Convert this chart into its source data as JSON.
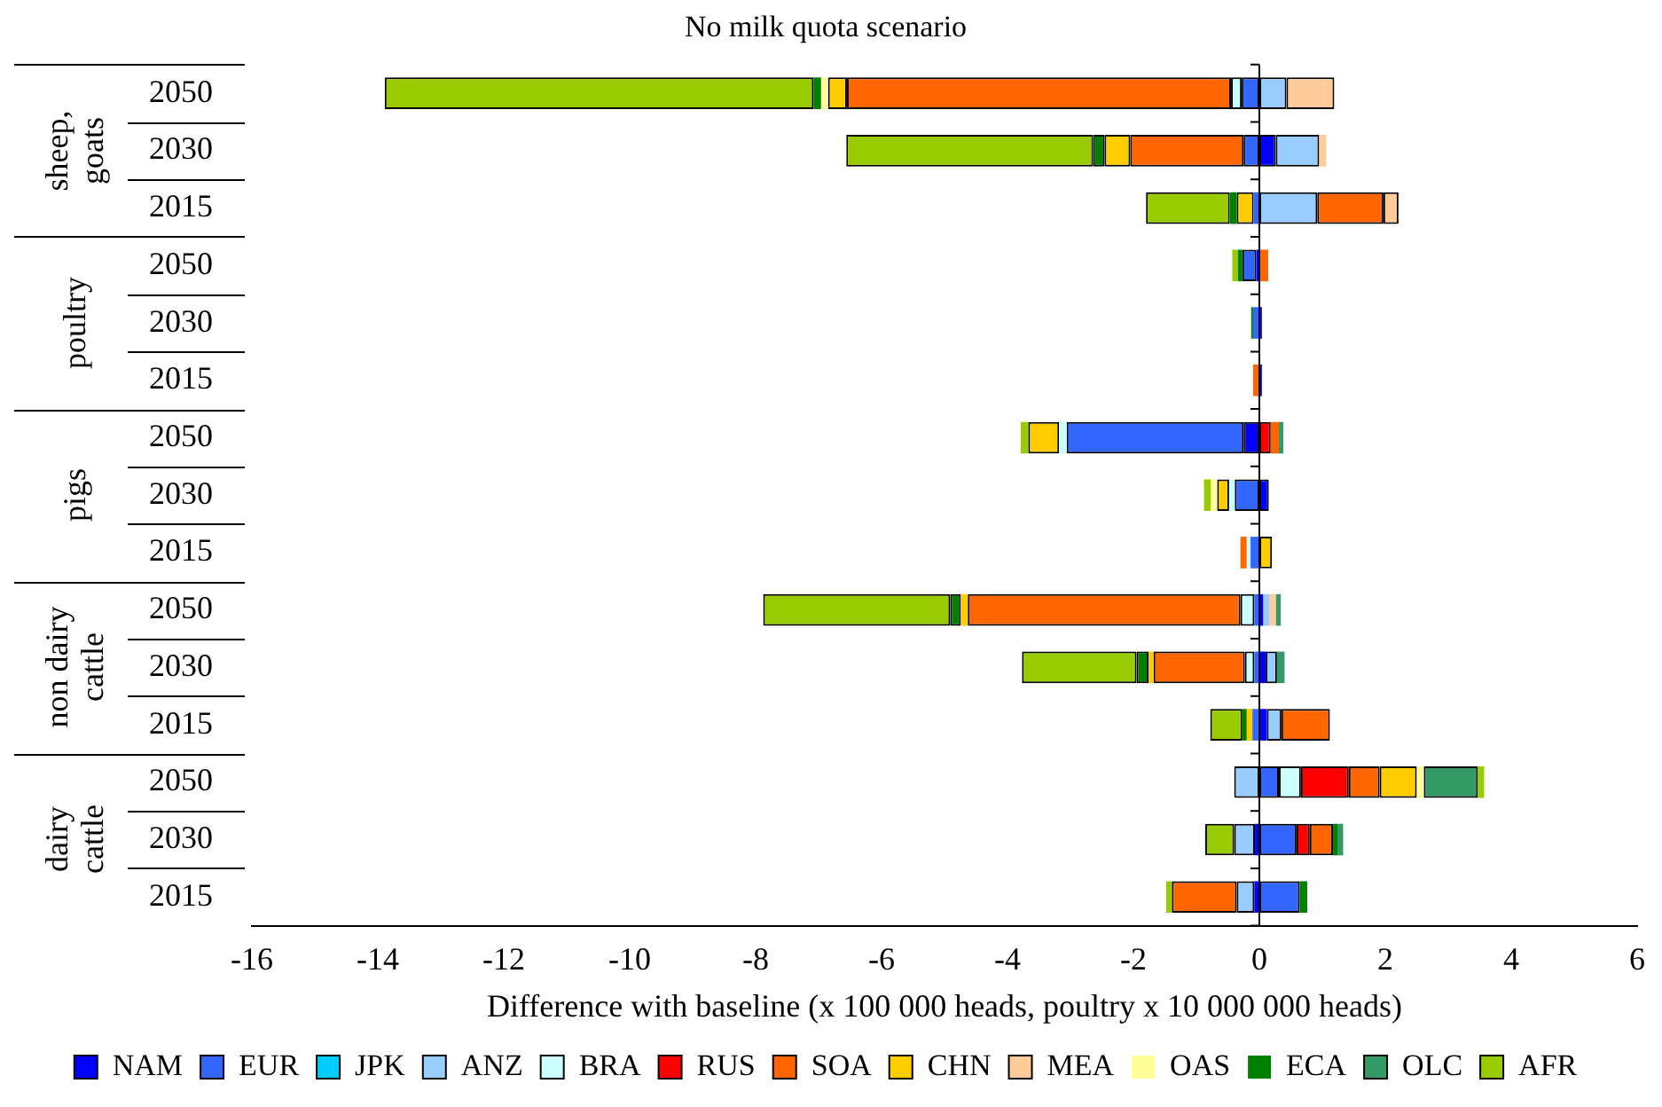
{
  "chart_data": {
    "type": "bar",
    "orientation": "horizontal",
    "stacked": true,
    "title": "No milk quota scenario",
    "xlabel": "Difference with baseline (x 100 000 heads, poultry x 10 000 000 heads)",
    "categories": [
      "2050",
      "2030",
      "2015",
      "2050",
      "2030",
      "2015",
      "2050",
      "2030",
      "2015",
      "2050",
      "2030",
      "2015",
      "2050",
      "2030",
      "2015"
    ],
    "annotations": [
      "sheep, goats",
      "poultry",
      "pigs",
      "non dairy cattle",
      "dairy cattle"
    ],
    "xlim": [
      -16,
      6
    ],
    "xticks": [
      -16,
      -14,
      -12,
      -10,
      -8,
      -6,
      -4,
      -2,
      0,
      2,
      4,
      6
    ],
    "grid": false,
    "legend": "bottom",
    "ref_lines": [
      {
        "axis": "x",
        "value": 0,
        "color": "#000000"
      }
    ],
    "series": [
      {
        "name": "NAM",
        "color": "#0000ff",
        "values": [
          null,
          0.26,
          null,
          -0.05,
          0.04,
          0.04,
          -0.25,
          0.15,
          null,
          0.06,
          0.1,
          0.12,
          null,
          -0.07,
          -0.08
        ]
      },
      {
        "name": "EUR",
        "color": "#3366ff",
        "values": [
          -0.28,
          -0.25,
          -0.09,
          -0.22,
          -0.1,
          null,
          -2.81,
          -0.39,
          -0.14,
          -0.08,
          -0.08,
          -0.11,
          0.31,
          0.59,
          0.64
        ]
      },
      {
        "name": "JPK",
        "color": "#00ccff",
        "values": [
          null,
          null,
          null,
          null,
          null,
          null,
          null,
          null,
          null,
          null,
          null,
          null,
          null,
          null,
          null
        ]
      },
      {
        "name": "ANZ",
        "color": "#99ccff",
        "values": [
          0.43,
          0.69,
          0.92,
          null,
          null,
          null,
          null,
          null,
          null,
          0.1,
          0.18,
          0.23,
          -0.4,
          -0.33,
          -0.28
        ]
      },
      {
        "name": "BRA",
        "color": "#ccffff",
        "values": [
          -0.17,
          null,
          null,
          null,
          null,
          null,
          -0.12,
          -0.09,
          -0.06,
          -0.22,
          -0.15,
          null,
          0.35,
          null,
          null
        ]
      },
      {
        "name": "RUS",
        "color": "#ff0000",
        "values": [
          null,
          null,
          null,
          null,
          null,
          null,
          0.18,
          null,
          null,
          null,
          null,
          null,
          0.76,
          0.21,
          null
        ]
      },
      {
        "name": "SOA",
        "color": "#ff6600",
        "values": [
          -6.1,
          -1.8,
          1.05,
          0.14,
          null,
          -0.1,
          0.13,
          null,
          -0.1,
          -4.33,
          -1.45,
          0.77,
          0.49,
          0.37,
          -1.03
        ]
      },
      {
        "name": "CHN",
        "color": "#ffcc00",
        "values": [
          -0.3,
          -0.41,
          -0.27,
          null,
          null,
          null,
          -0.49,
          -0.19,
          0.2,
          -0.11,
          -0.08,
          -0.09,
          0.59,
          null,
          null
        ]
      },
      {
        "name": "MEA",
        "color": "#ffcc99",
        "values": [
          0.76,
          0.11,
          0.24,
          null,
          null,
          null,
          null,
          null,
          null,
          0.1,
          null,
          null,
          null,
          null,
          null
        ]
      },
      {
        "name": "OAS",
        "color": "#ffff99",
        "values": [
          -0.11,
          null,
          null,
          null,
          null,
          null,
          null,
          -0.1,
          null,
          null,
          null,
          null,
          0.11,
          null,
          null
        ]
      },
      {
        "name": "ECA",
        "color": "#008000",
        "values": [
          -0.12,
          -0.18,
          -0.11,
          -0.07,
          -0.03,
          null,
          null,
          null,
          null,
          -0.17,
          -0.19,
          -0.07,
          null,
          0.07,
          0.12
        ]
      },
      {
        "name": "OLC",
        "color": "#339966",
        "values": [
          null,
          null,
          null,
          null,
          null,
          null,
          0.07,
          null,
          null,
          0.08,
          0.12,
          null,
          0.86,
          0.09,
          null
        ]
      },
      {
        "name": "AFR",
        "color": "#99cc00",
        "values": [
          -6.81,
          -3.92,
          -1.33,
          -0.09,
          null,
          null,
          -0.12,
          -0.11,
          null,
          -2.97,
          -1.82,
          -0.51,
          0.1,
          -0.46,
          -0.09
        ]
      }
    ]
  }
}
